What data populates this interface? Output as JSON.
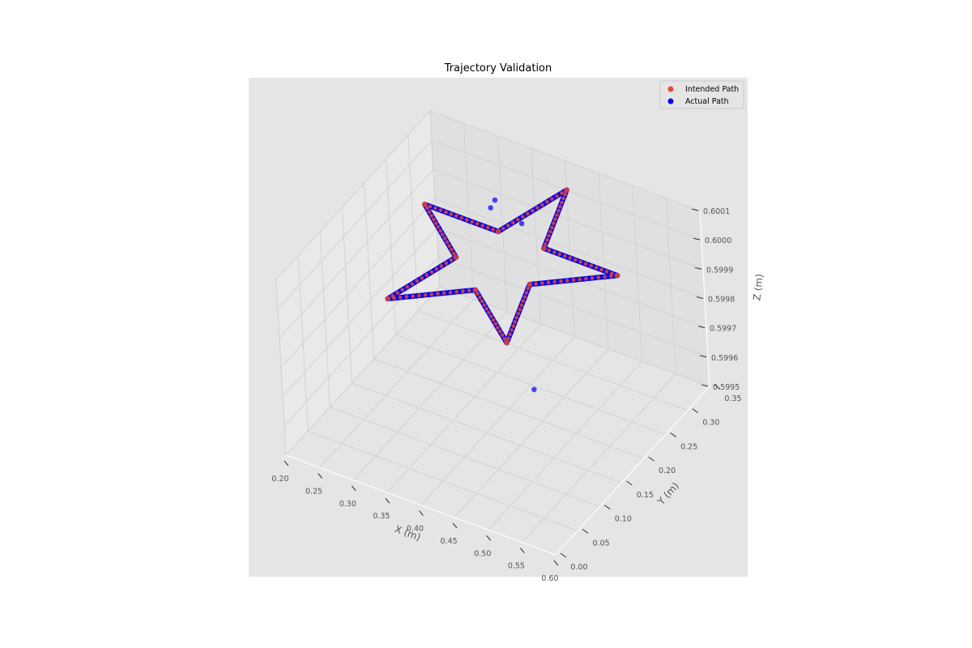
{
  "chart_data": {
    "type": "scatter",
    "projection": "3d",
    "title": "Trajectory Validation",
    "xlabel": "X (m)",
    "ylabel": "Y (m)",
    "zlabel": "Z (m)",
    "xlim": [
      0.2,
      0.6
    ],
    "ylim": [
      0.0,
      0.35
    ],
    "zlim": [
      0.5995,
      0.6001
    ],
    "x_ticks": [
      "0.20",
      "0.25",
      "0.30",
      "0.35",
      "0.40",
      "0.45",
      "0.50",
      "0.55",
      "0.60"
    ],
    "y_ticks": [
      "0.00",
      "0.05",
      "0.10",
      "0.15",
      "0.20",
      "0.25",
      "0.30",
      "0.35"
    ],
    "z_ticks": [
      "0.5995",
      "0.5996",
      "0.5997",
      "0.5998",
      "0.5999",
      "0.6000",
      "0.6001"
    ],
    "grid": true,
    "legend_position": "top-right",
    "star": {
      "center": [
        0.4,
        0.2
      ],
      "outer_radius": 0.15,
      "inner_radius": 0.0575,
      "z": 0.6,
      "points_per_edge": 14
    },
    "series": [
      {
        "name": "Intended Path",
        "color": "#e24a33",
        "marker": "circle",
        "style": "star-vertices-and-edges"
      },
      {
        "name": "Actual Path",
        "color": "#0000ee",
        "marker": "circle",
        "style": "star-dense-track",
        "outliers": [
          {
            "x": 0.4,
            "y": 0.25,
            "z": 0.60005
          },
          {
            "x": 0.34,
            "y": 0.28,
            "z": 0.60003
          },
          {
            "x": 0.34,
            "y": 0.27,
            "z": 0.60002
          },
          {
            "x": 0.44,
            "y": 0.2,
            "z": 0.5996
          }
        ]
      }
    ]
  }
}
